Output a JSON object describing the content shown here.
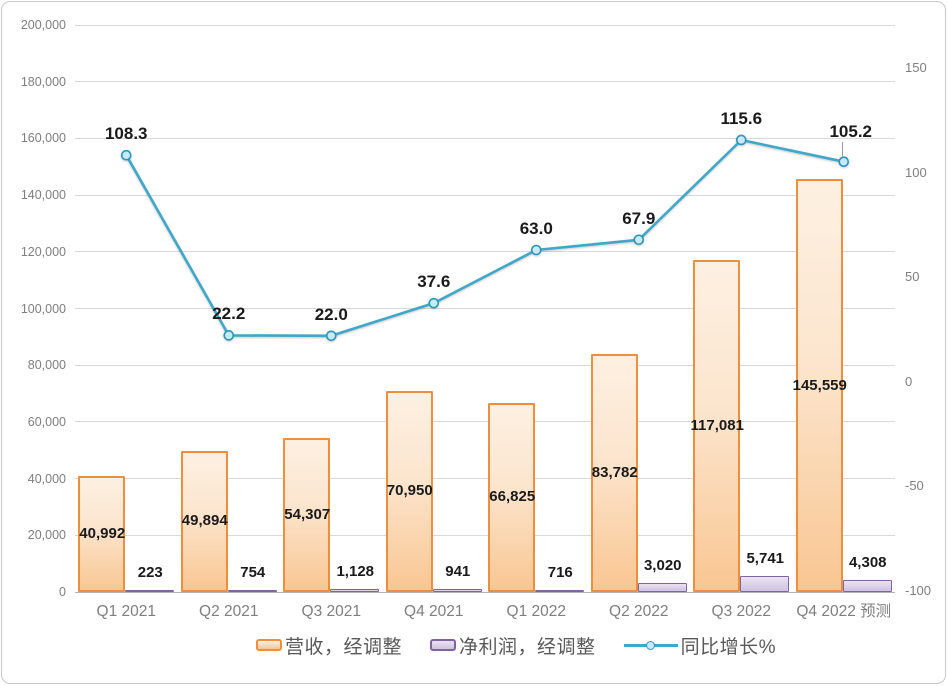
{
  "chart_data": {
    "type": "combo",
    "categories": [
      "Q1 2021",
      "Q2 2021",
      "Q3 2021",
      "Q4 2021",
      "Q1 2022",
      "Q2 2022",
      "Q3 2022",
      "Q4 2022 预测"
    ],
    "series": [
      {
        "name": "营收，经调整",
        "type": "bar",
        "axis": "primary",
        "values": [
          40992,
          49894,
          54307,
          70950,
          66825,
          83782,
          117081,
          145559
        ],
        "labels": [
          "40,992",
          "49,894",
          "54,307",
          "70,950",
          "66,825",
          "83,782",
          "117,081",
          "145,559"
        ]
      },
      {
        "name": "净利润，经调整",
        "type": "bar",
        "axis": "primary",
        "values": [
          223,
          754,
          1128,
          941,
          716,
          3020,
          5741,
          4308
        ],
        "labels": [
          "223",
          "754",
          "1,128",
          "941",
          "716",
          "3,020",
          "5,741",
          "4,308"
        ]
      },
      {
        "name": "同比增长%",
        "type": "line",
        "axis": "secondary",
        "values": [
          108.3,
          22.2,
          22.0,
          37.6,
          63.0,
          67.9,
          115.6,
          105.2
        ],
        "labels": [
          "108.3",
          "22.2",
          "22.0",
          "37.6",
          "63.0",
          "67.9",
          "115.6",
          "105.2"
        ]
      }
    ],
    "primary_axis": {
      "min": 0,
      "max": 200000,
      "step": 20000,
      "tick_labels": [
        "0",
        "20,000",
        "40,000",
        "60,000",
        "80,000",
        "100,000",
        "120,000",
        "140,000",
        "160,000",
        "180,000",
        "200,000"
      ]
    },
    "secondary_axis": {
      "min": -100,
      "max": 150,
      "step": 50,
      "tick_labels": [
        "150",
        "100",
        "50",
        "0",
        "-50",
        "-100"
      ],
      "tick_values": [
        150,
        100,
        50,
        0,
        -50,
        -100
      ]
    },
    "grid": true,
    "legend_position": "bottom"
  },
  "colors": {
    "revenue_border": "#ee8f3f",
    "profit_border": "#8064a2",
    "line": "#3fa8c8",
    "marker_fill": "#c7eaf5",
    "gridline": "#d9d9d9",
    "axis_line": "#b3b3b3",
    "axis_text": "#7f7f7f",
    "data_label": "#1a1a1a",
    "legend_text": "#595959"
  }
}
